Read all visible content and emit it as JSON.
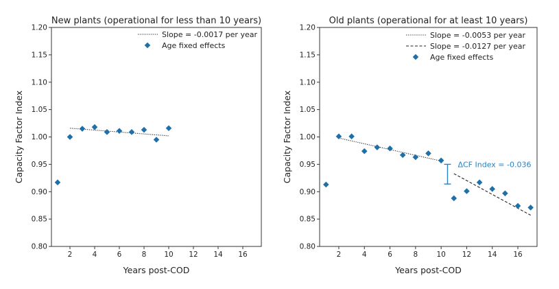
{
  "chart_data": [
    {
      "type": "scatter",
      "title": "New plants (operational for less than 10 years)",
      "xlabel": "Years post-COD",
      "ylabel": "Capacity Factor Index",
      "xlim": [
        0.5,
        17.5
      ],
      "ylim": [
        0.8,
        1.2
      ],
      "xticks": [
        "2",
        "4",
        "6",
        "8",
        "10",
        "12",
        "14",
        "16"
      ],
      "yticks": [
        "0.80",
        "0.85",
        "0.90",
        "0.95",
        "1.00",
        "1.05",
        "1.10",
        "1.15",
        "1.20"
      ],
      "colors": {
        "points": "#1f6fa8",
        "annotation": "#2a82c0",
        "line": "#222222"
      },
      "points": {
        "name": "Age fixed effects",
        "x": [
          1,
          2,
          3,
          4,
          5,
          6,
          7,
          8,
          9,
          10
        ],
        "y": [
          0.917,
          1.0,
          1.015,
          1.018,
          1.009,
          1.011,
          1.009,
          1.013,
          0.995,
          1.016
        ]
      },
      "trend_lines": [
        {
          "name": "Slope = -0.0017 per year",
          "style": "dotted",
          "x": [
            2,
            10
          ],
          "y": [
            1.016,
            1.002
          ]
        }
      ]
    },
    {
      "type": "scatter",
      "title": "Old plants (operational for at least 10 years)",
      "xlabel": "Years post-COD",
      "ylabel": "Capacity Factor Index",
      "xlim": [
        0.5,
        17.5
      ],
      "ylim": [
        0.8,
        1.2
      ],
      "xticks": [
        "2",
        "4",
        "6",
        "8",
        "10",
        "12",
        "14",
        "16"
      ],
      "yticks": [
        "0.80",
        "0.85",
        "0.90",
        "0.95",
        "1.00",
        "1.05",
        "1.10",
        "1.15",
        "1.20"
      ],
      "colors": {
        "points": "#1f6fa8",
        "annotation": "#2a82c0",
        "line": "#222222"
      },
      "points": {
        "name": "Age fixed effects",
        "x": [
          1,
          2,
          3,
          4,
          5,
          6,
          7,
          8,
          9,
          10,
          11,
          12,
          13,
          14,
          15,
          16,
          17
        ],
        "y": [
          0.913,
          1.001,
          1.001,
          0.974,
          0.981,
          0.979,
          0.967,
          0.963,
          0.97,
          0.957,
          0.888,
          0.901,
          0.917,
          0.905,
          0.897,
          0.874,
          0.871
        ]
      },
      "trend_lines": [
        {
          "name": "Slope = -0.0053 per year",
          "style": "dotted",
          "x": [
            2,
            10
          ],
          "y": [
            0.998,
            0.956
          ]
        },
        {
          "name": "Slope = -0.0127 per year",
          "style": "dashed",
          "x": [
            11,
            17
          ],
          "y": [
            0.933,
            0.857
          ]
        }
      ],
      "annotation": {
        "text": "ΔCF Index = -0.036",
        "x": 10.5,
        "y_top": 0.95,
        "y_bottom": 0.914
      }
    }
  ]
}
